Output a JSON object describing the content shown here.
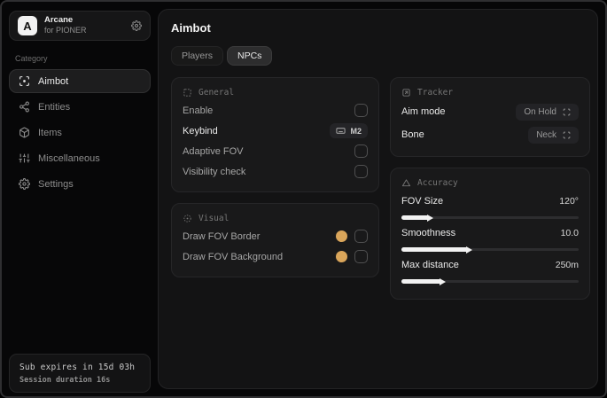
{
  "app": {
    "accent_color": "#d9a55a"
  },
  "sidebar": {
    "brand": {
      "logo_letter": "A",
      "name": "Arcane",
      "subtitle": "for PIONER",
      "action_icon": "gear-icon"
    },
    "category_label": "Category",
    "items": [
      {
        "label": "Aimbot",
        "icon": "crosshair-icon",
        "active": true
      },
      {
        "label": "Entities",
        "icon": "entities-icon",
        "active": false
      },
      {
        "label": "Items",
        "icon": "package-icon",
        "active": false
      },
      {
        "label": "Miscellaneous",
        "icon": "sliders-icon",
        "active": false
      },
      {
        "label": "Settings",
        "icon": "gear-icon",
        "active": false
      }
    ],
    "footer": {
      "line1": "Sub expires in 15d 03h",
      "line2": "Session duration 16s"
    }
  },
  "main": {
    "title": "Aimbot",
    "tabs": [
      {
        "label": "Players",
        "active": false
      },
      {
        "label": "NPCs",
        "active": true
      }
    ],
    "cards": {
      "general": {
        "title": "General",
        "icon": "dashed-box-icon",
        "rows": [
          {
            "label": "Enable",
            "control": "checkbox",
            "checked": false
          },
          {
            "label": "Keybind",
            "control": "keybind",
            "value": "M2",
            "icon": "keyboard-icon"
          },
          {
            "label": "Adaptive FOV",
            "control": "checkbox",
            "checked": false
          },
          {
            "label": "Visibility check",
            "control": "checkbox",
            "checked": false
          }
        ]
      },
      "visual": {
        "title": "Visual",
        "icon": "aperture-icon",
        "rows": [
          {
            "label": "Draw FOV Border",
            "control": "color-checkbox",
            "color": "#d9a55a",
            "checked": false
          },
          {
            "label": "Draw FOV Background",
            "control": "color-checkbox",
            "color": "#d9a55a",
            "checked": false
          }
        ]
      },
      "tracker": {
        "title": "Tracker",
        "icon": "frame-icon",
        "rows": [
          {
            "label": "Aim mode",
            "control": "select",
            "value": "On Hold",
            "icon": "expand-icon"
          },
          {
            "label": "Bone",
            "control": "select",
            "value": "Neck",
            "icon": "expand-icon"
          }
        ]
      },
      "accuracy": {
        "title": "Accuracy",
        "icon": "triangle-icon",
        "sliders": [
          {
            "label": "FOV Size",
            "value": "120°",
            "percent": 15
          },
          {
            "label": "Smoothness",
            "value": "10.0",
            "percent": 37
          },
          {
            "label": "Max distance",
            "value": "250m",
            "percent": 22
          }
        ]
      }
    }
  }
}
